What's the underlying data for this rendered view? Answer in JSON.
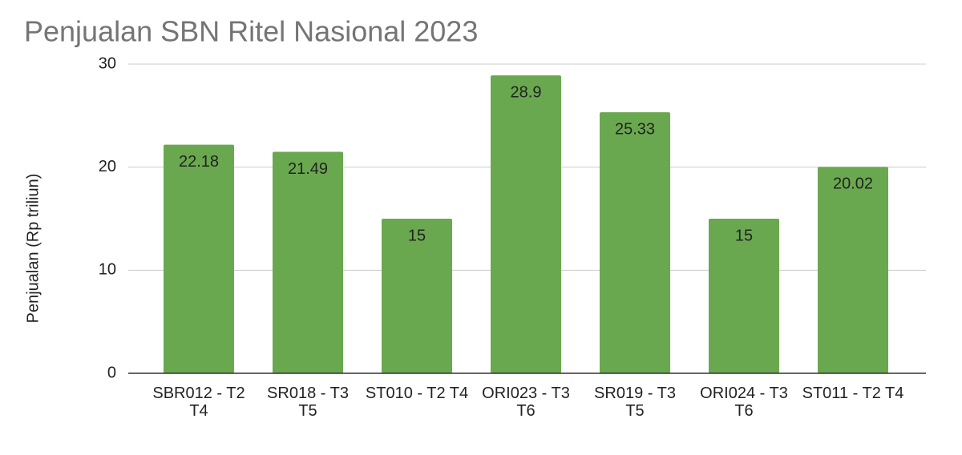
{
  "chart_data": {
    "type": "bar",
    "title": "Penjualan SBN Ritel Nasional 2023",
    "y_label": "Penjualan (Rp triliun)",
    "categories": [
      "SBR012 - T2 T4",
      "SR018 - T3 T5",
      "ST010 - T2 T4",
      "ORI023 - T3 T6",
      "SR019 - T3 T5",
      "ORI024 - T3 T6",
      "ST011 - T2 T4"
    ],
    "values": [
      22.18,
      21.49,
      15,
      28.9,
      25.33,
      15,
      20.02
    ],
    "color": "#6aa84f",
    "ylim": [
      0,
      30
    ],
    "yticks": [
      0,
      10,
      20,
      30
    ],
    "grid": true
  }
}
